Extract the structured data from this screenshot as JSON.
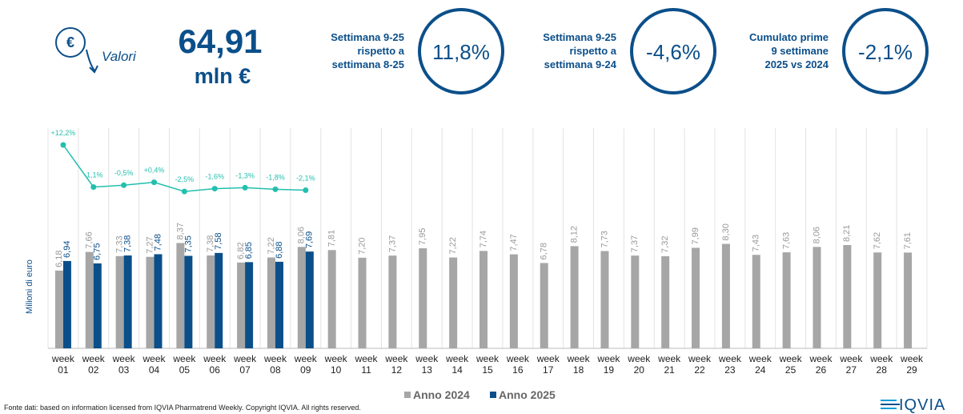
{
  "header": {
    "icon_label": "Valori",
    "total": "64,91",
    "unit": "mln €",
    "kpis": [
      {
        "label": [
          "Settimana 9-25",
          "rispetto a",
          "settimana 8-25"
        ],
        "value": "11,8%"
      },
      {
        "label": [
          "Settimana 9-25",
          "rispetto a",
          "settimana 9-24"
        ],
        "value": "-4,6%"
      },
      {
        "label": [
          "Cumulato prime",
          "9 settimane",
          "2025 vs 2024"
        ],
        "value": "-2,1%"
      }
    ]
  },
  "chart_data": {
    "type": "bar",
    "y_label": "Milioni di euro",
    "categories": [
      "week 01",
      "week 02",
      "week 03",
      "week 04",
      "week 05",
      "week 06",
      "week 07",
      "week 08",
      "week 09",
      "week 10",
      "week 11",
      "week 12",
      "week 13",
      "week 14",
      "week 15",
      "week 16",
      "week 17",
      "week 18",
      "week 19",
      "week 20",
      "week 21",
      "week 22",
      "week 23",
      "week 24",
      "week 25",
      "week 26",
      "week 27",
      "week 28",
      "week 29"
    ],
    "ylim": [
      0,
      17.5
    ],
    "y2lim": [
      -52,
      17.5
    ],
    "series": [
      {
        "name": "Anno 2024",
        "color": "#a6a6a6",
        "values": [
          6.18,
          7.66,
          7.33,
          7.27,
          8.37,
          7.38,
          6.82,
          7.22,
          8.06,
          7.81,
          7.2,
          7.37,
          7.95,
          7.22,
          7.74,
          7.47,
          6.78,
          8.12,
          7.73,
          7.37,
          7.32,
          7.99,
          8.3,
          7.43,
          7.63,
          8.06,
          8.21,
          7.62,
          7.61
        ],
        "value_labels": [
          "6,18",
          "7,66",
          "7,33",
          "7,27",
          "8,37",
          "7,38",
          "6,82",
          "7,22",
          "8,06",
          "7,81",
          "7,20",
          "7,37",
          "7,95",
          "7,22",
          "7,74",
          "7,47",
          "6,78",
          "8,12",
          "7,73",
          "7,37",
          "7,32",
          "7,99",
          "8,30",
          "7,43",
          "7,63",
          "8,06",
          "8,21",
          "7,62",
          "7,61"
        ]
      },
      {
        "name": "Anno 2025",
        "color": "#0b4f8a",
        "values": [
          6.94,
          6.75,
          7.38,
          7.48,
          7.35,
          7.58,
          6.85,
          6.88,
          7.69,
          null,
          null,
          null,
          null,
          null,
          null,
          null,
          null,
          null,
          null,
          null,
          null,
          null,
          null,
          null,
          null,
          null,
          null,
          null,
          null
        ],
        "value_labels": [
          "6,94",
          "6,75",
          "7,38",
          "7,48",
          "7,35",
          "7,58",
          "6,85",
          "6,88",
          "7,69",
          null,
          null,
          null,
          null,
          null,
          null,
          null,
          null,
          null,
          null,
          null,
          null,
          null,
          null,
          null,
          null,
          null,
          null,
          null,
          null
        ]
      }
    ],
    "line_series": {
      "axis": "y2",
      "color": "#22bfae",
      "values": [
        12.2,
        -1.1,
        -0.5,
        0.4,
        -2.5,
        -1.6,
        -1.3,
        -1.8,
        -2.1
      ],
      "value_labels": [
        "+12,2%",
        "-1,1%",
        "-0,5%",
        "+0,4%",
        "-2,5%",
        "-1,6%",
        "-1,3%",
        "-1,8%",
        "-2,1%"
      ]
    },
    "source": "Fonte dati: based on information licensed from IQVIA Pharmatrend Weekly. Copyright IQVIA. All rights reserved.",
    "logo": "IQVIA"
  }
}
